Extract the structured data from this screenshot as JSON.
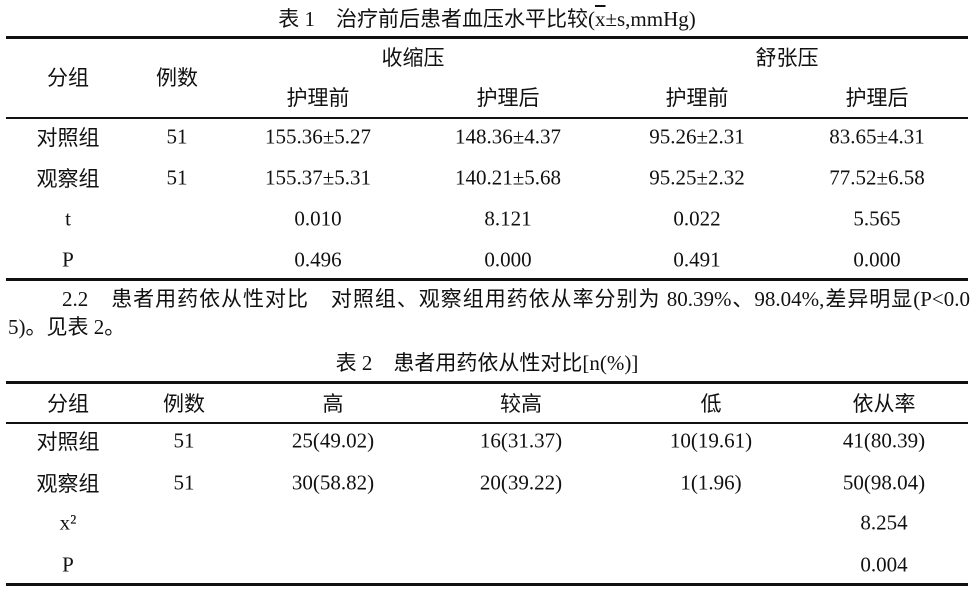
{
  "table1": {
    "label": "表 1",
    "title_before": "治疗前后患者血压水平比较(",
    "title_mean": "x",
    "title_after": "±s,mmHg)",
    "headers": {
      "group": "分组",
      "n": "例数",
      "systolic": "收缩压",
      "diastolic": "舒张压",
      "sub": [
        "护理前",
        "护理后",
        "护理前",
        "护理后"
      ]
    },
    "rows": [
      [
        "对照组",
        "51",
        "155.36±5.27",
        "148.36±4.37",
        "95.26±2.31",
        "83.65±4.31"
      ],
      [
        "观察组",
        "51",
        "155.37±5.31",
        "140.21±5.68",
        "95.25±2.32",
        "77.52±6.58"
      ],
      [
        "t",
        null,
        "0.010",
        "8.121",
        "0.022",
        "5.565"
      ],
      [
        "P",
        null,
        "0.496",
        "0.000",
        "0.491",
        "0.000"
      ]
    ]
  },
  "paragraph": {
    "heading": "2.2　患者用药依从性对比",
    "text": "对照组、观察组用药依从率分别为 80.39%、98.04%,差异明显(P<0.05)。见表 2。"
  },
  "table2": {
    "label": "表 2",
    "title": "患者用药依从性对比[n(%)]",
    "headers": [
      "分组",
      "例数",
      "高",
      "较高",
      "低",
      "依从率"
    ],
    "rows": [
      [
        "对照组",
        "51",
        "25(49.02)",
        "16(31.37)",
        "10(19.61)",
        "41(80.39)"
      ],
      [
        "观察组",
        "51",
        "30(58.82)",
        "20(39.22)",
        "1(1.96)",
        "50(98.04)"
      ],
      [
        "x²",
        null,
        null,
        null,
        null,
        "8.254"
      ],
      [
        "P",
        null,
        null,
        null,
        null,
        "0.004"
      ]
    ]
  }
}
